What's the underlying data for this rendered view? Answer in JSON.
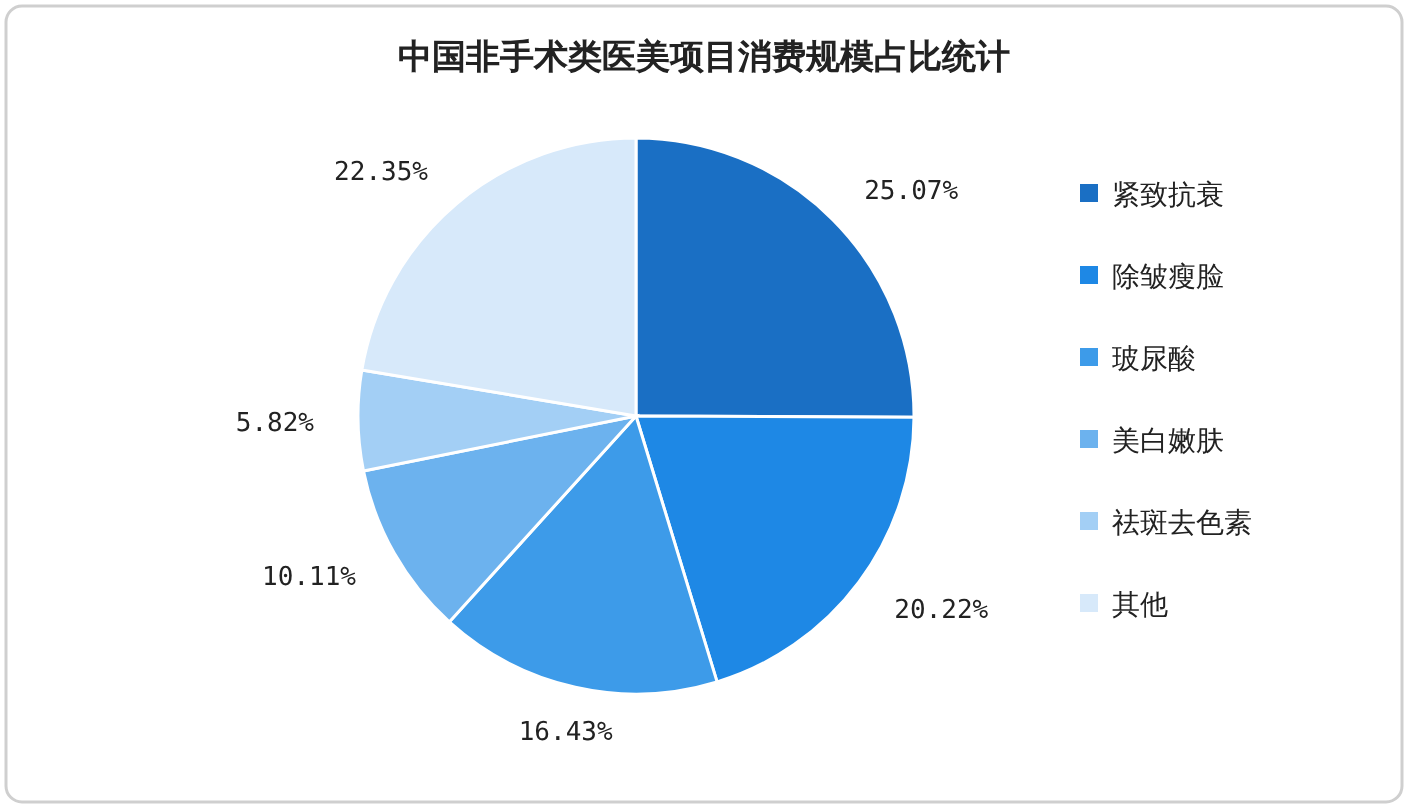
{
  "chart_data": {
    "type": "pie",
    "title": "中国非手术类医美项目消费规模占比统计",
    "categories": [
      "紧致抗衰",
      "除皱瘦脸",
      "玻尿酸",
      "美白嫩肤",
      "祛斑去色素",
      "其他"
    ],
    "values": [
      25.07,
      20.22,
      16.43,
      10.11,
      5.82,
      22.35
    ],
    "value_labels": [
      "25.07%",
      "20.22%",
      "16.43%",
      "10.11%",
      "5.82%",
      "22.35%"
    ],
    "colors": [
      "#1a6fc4",
      "#1e88e5",
      "#3d9be9",
      "#6cb2ee",
      "#a3cff5",
      "#d7e9fa"
    ],
    "legend": "right"
  }
}
